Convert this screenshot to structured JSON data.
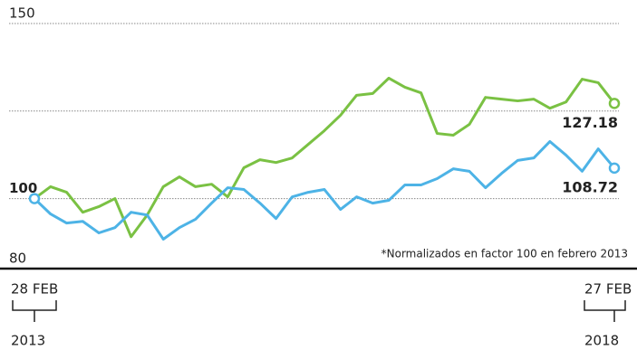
{
  "chart_data": {
    "type": "line",
    "note": "*Normalizados en factor 100 en febrero 2013",
    "start_date": "28 FEB",
    "start_year": "2013",
    "end_date": "27 FEB",
    "end_year": "2018",
    "ylim": [
      80,
      150
    ],
    "yticks": [
      80,
      100,
      150
    ],
    "grid_values": [
      100,
      125,
      150
    ],
    "grid": true,
    "series": [
      {
        "color": "#7ac143",
        "values": [
          100,
          103.4,
          101.8,
          96.1,
          97.7,
          100,
          89.1,
          95.3,
          103.4,
          106.2,
          103.4,
          104.1,
          100.5,
          108.8,
          111.1,
          110.3,
          111.6,
          115.5,
          119.4,
          123.8,
          129.5,
          130.0,
          134.4,
          131.8,
          130.2,
          118.6,
          118.1,
          121.2,
          128.9,
          128.4,
          127.9,
          128.4,
          125.8,
          127.6,
          134.1,
          133.1,
          127.18
        ]
      },
      {
        "color": "#4db3e6",
        "values": [
          100,
          95.6,
          93.0,
          93.5,
          90.2,
          91.7,
          96.1,
          95.3,
          88.4,
          91.7,
          94.1,
          98.7,
          103.1,
          102.6,
          98.7,
          94.3,
          100.5,
          101.8,
          102.6,
          96.9,
          100.5,
          98.7,
          99.5,
          103.9,
          103.9,
          105.7,
          108.5,
          107.8,
          103.1,
          107.2,
          110.9,
          111.6,
          116.3,
          112.4,
          107.8,
          114.2,
          108.72
        ]
      }
    ]
  }
}
